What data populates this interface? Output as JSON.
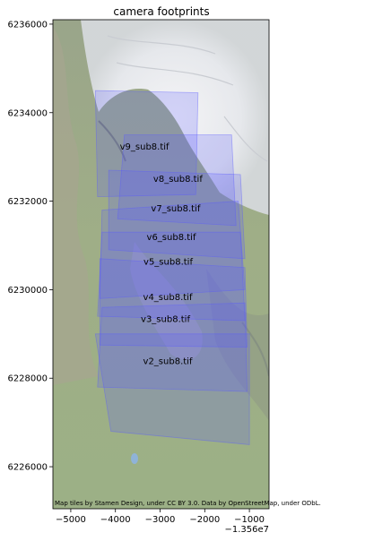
{
  "chart_data": {
    "type": "map",
    "title": "camera footprints",
    "xlim": [
      -5400,
      -560
    ],
    "ylim": [
      6225050,
      6236100
    ],
    "x_ticks": [
      {
        "value": -5000,
        "label": "−5000"
      },
      {
        "value": -4000,
        "label": "−4000"
      },
      {
        "value": -3000,
        "label": "−3000"
      },
      {
        "value": -2000,
        "label": "−2000"
      },
      {
        "value": -1000,
        "label": "−1000"
      }
    ],
    "x_offset_label": "−1.356e7",
    "y_ticks": [
      {
        "value": 6226000,
        "label": "6226000"
      },
      {
        "value": 6228000,
        "label": "6228000"
      },
      {
        "value": 6230000,
        "label": "6230000"
      },
      {
        "value": 6232000,
        "label": "6232000"
      },
      {
        "value": 6234000,
        "label": "6234000"
      },
      {
        "value": 6236000,
        "label": "6236000"
      }
    ],
    "footprint_color": "#5a5aff",
    "footprints": [
      {
        "name": "v9_sub8.tif",
        "label_x": -3350,
        "label_y": 6233250,
        "polygon": [
          [
            -4450,
            6234500
          ],
          [
            -2150,
            6234450
          ],
          [
            -2200,
            6232150
          ],
          [
            -4400,
            6232100
          ]
        ]
      },
      {
        "name": "v8_sub8.tif",
        "label_x": -2600,
        "label_y": 6232520,
        "polygon": [
          [
            -3800,
            6233500
          ],
          [
            -1400,
            6233500
          ],
          [
            -1300,
            6231450
          ],
          [
            -3950,
            6231600
          ]
        ]
      },
      {
        "name": "v7_sub8.tif",
        "label_x": -2650,
        "label_y": 6231850,
        "polygon": [
          [
            -4150,
            6232700
          ],
          [
            -1200,
            6232600
          ],
          [
            -1100,
            6230700
          ],
          [
            -4150,
            6230900
          ]
        ]
      },
      {
        "name": "v6_sub8.tif",
        "label_x": -2750,
        "label_y": 6231200,
        "polygon": [
          [
            -4300,
            6231800
          ],
          [
            -1250,
            6232000
          ],
          [
            -1100,
            6230000
          ],
          [
            -4350,
            6229800
          ]
        ]
      },
      {
        "name": "v5_sub8.tif",
        "label_x": -2820,
        "label_y": 6230650,
        "polygon": [
          [
            -4300,
            6231300
          ],
          [
            -1200,
            6231300
          ],
          [
            -1100,
            6229300
          ],
          [
            -4400,
            6229400
          ]
        ]
      },
      {
        "name": "v4_sub8.tif",
        "label_x": -2830,
        "label_y": 6229850,
        "polygon": [
          [
            -4350,
            6230700
          ],
          [
            -1100,
            6230500
          ],
          [
            -1050,
            6228700
          ],
          [
            -4350,
            6228750
          ]
        ]
      },
      {
        "name": "v3_sub8.tif",
        "label_x": -2880,
        "label_y": 6229350,
        "polygon": [
          [
            -4300,
            6229600
          ],
          [
            -1100,
            6229700
          ],
          [
            -1050,
            6227700
          ],
          [
            -4400,
            6227800
          ]
        ]
      },
      {
        "name": "v2_sub8.tif",
        "label_x": -2830,
        "label_y": 6228400,
        "polygon": [
          [
            -4450,
            6229000
          ],
          [
            -1000,
            6229000
          ],
          [
            -1000,
            6226500
          ],
          [
            -4100,
            6226800
          ]
        ]
      }
    ],
    "attribution": "Map tiles by Stamen Design, under CC BY 3.0. Data by OpenStreetMap, under ODbL."
  }
}
